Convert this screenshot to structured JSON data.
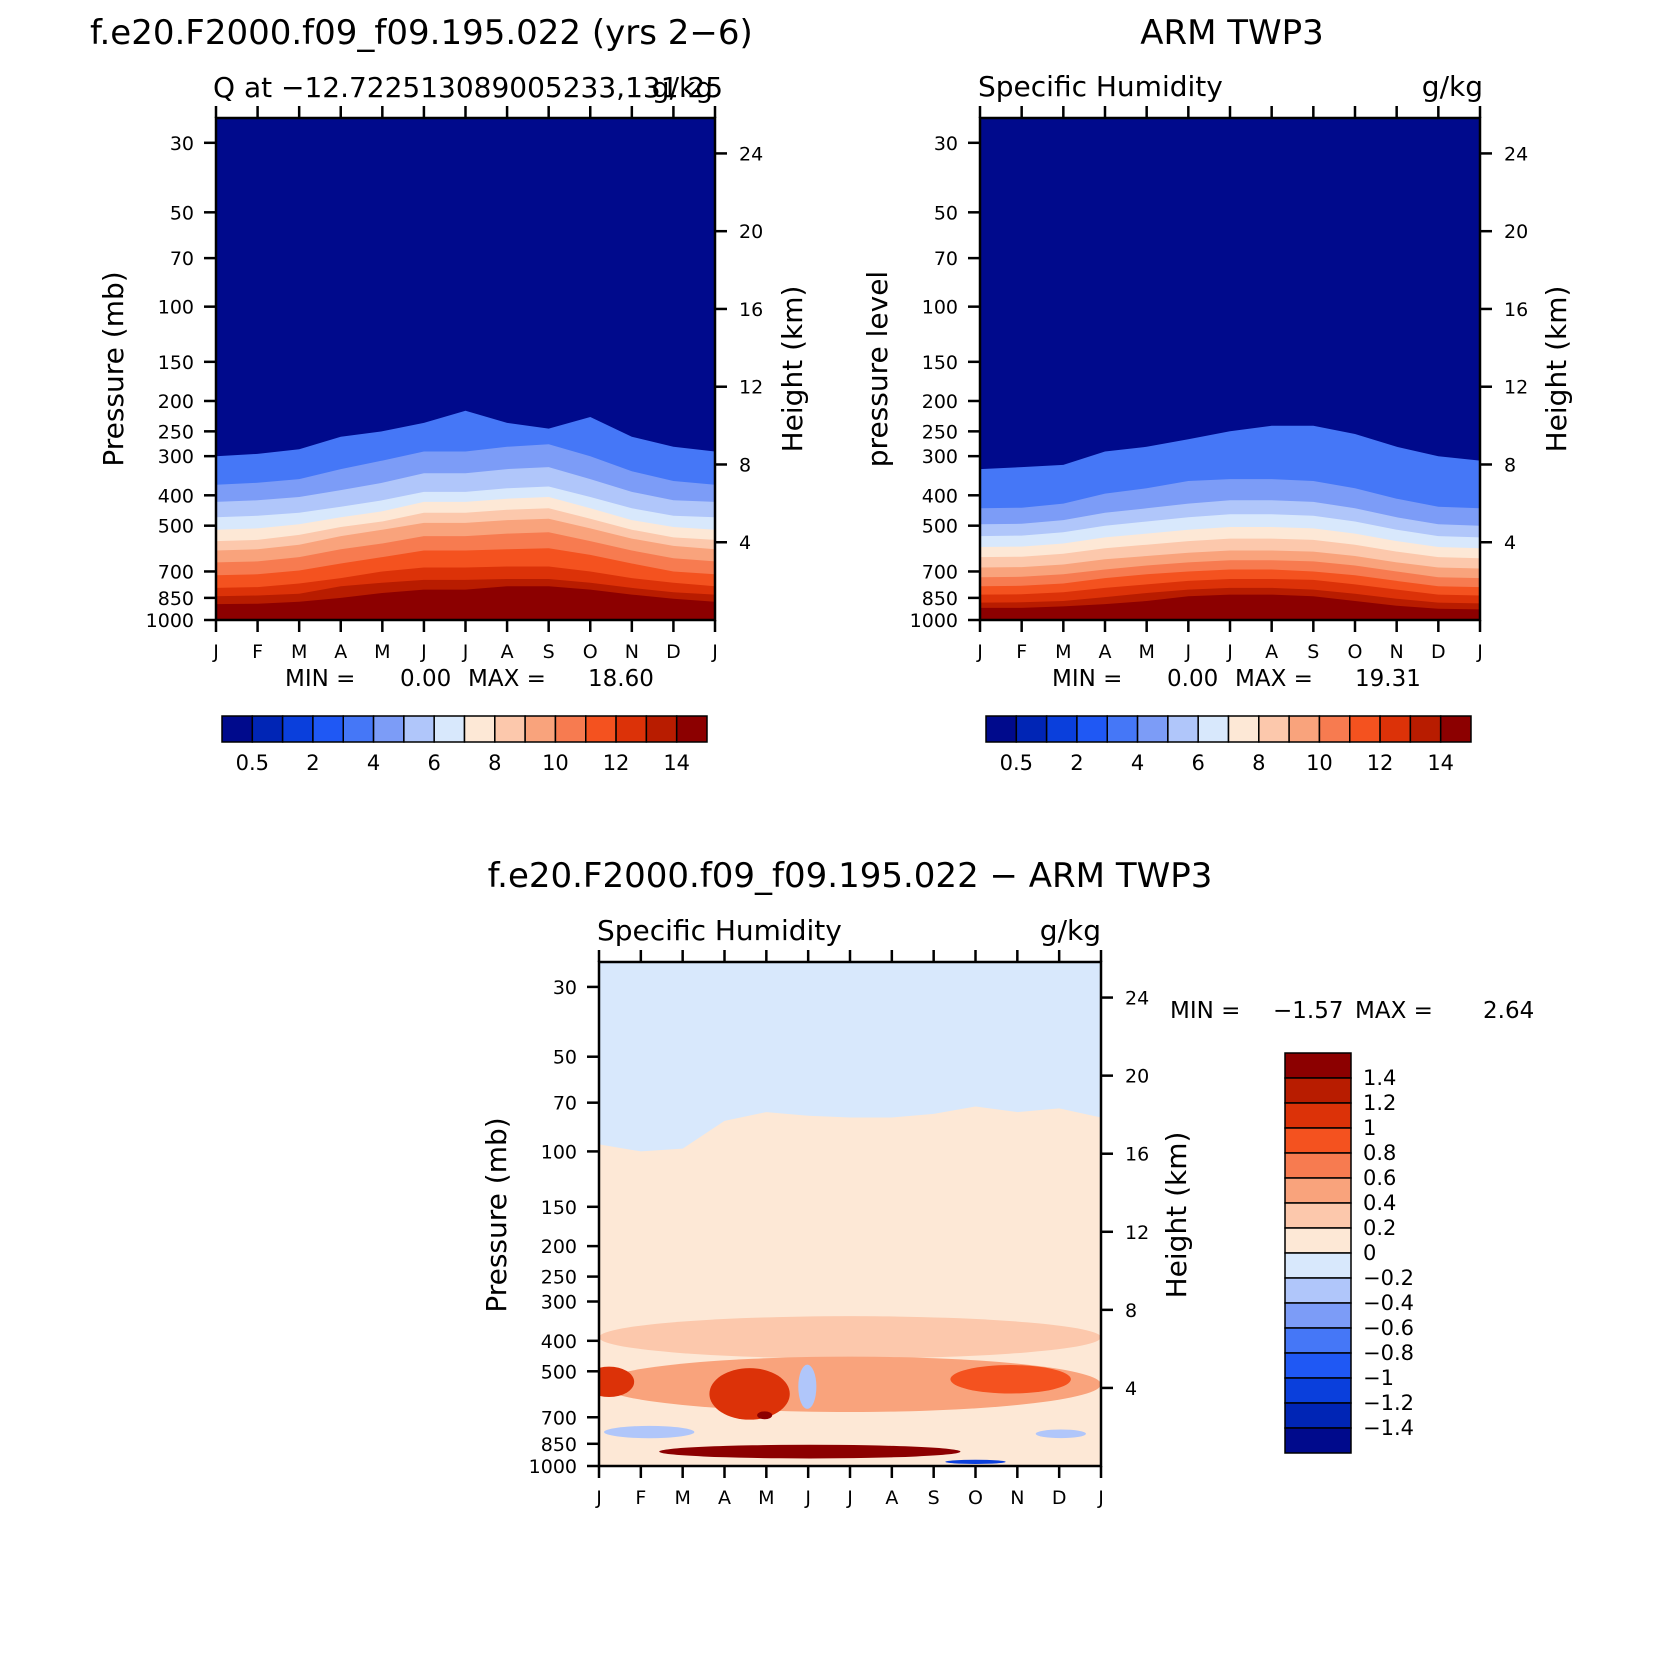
{
  "colors": {
    "seq_palette": [
      "#000a8c",
      "#0025b5",
      "#0a3fdc",
      "#1f58f4",
      "#4577f7",
      "#7c9cf7",
      "#b0c6fa",
      "#d8e8fc",
      "#fde8d6",
      "#fcc8ac",
      "#f9a37c",
      "#f77b50",
      "#f4521f",
      "#dc3208",
      "#b81c00",
      "#8c0000"
    ],
    "diff_palette": [
      "#8c0000",
      "#b81c00",
      "#dc3208",
      "#f4521f",
      "#f77b50",
      "#f9a37c",
      "#fcc8ac",
      "#fde8d6",
      "#d8e8fc",
      "#b0c6fa",
      "#7c9cf7",
      "#4577f7",
      "#1f58f4",
      "#0a3fdc",
      "#0025b5",
      "#000a8c"
    ]
  },
  "chart_data": [
    {
      "type": "heatmap",
      "title": "f.e20.F2000.f09_f09.195.022 (yrs 2−6)",
      "subtitle_left": "Q at −12.722513089005233,131.25",
      "subtitle_right": "g/kg",
      "ylabel": "Pressure (mb)",
      "ylabel_right": "Height (km)",
      "x_ticks": [
        "J",
        "F",
        "M",
        "A",
        "M",
        "J",
        "J",
        "A",
        "S",
        "O",
        "N",
        "D",
        "J"
      ],
      "y_ticks": [
        "30",
        "50",
        "70",
        "100",
        "150",
        "200",
        "250",
        "300",
        "400",
        "500",
        "700",
        "850",
        "1000"
      ],
      "y_ticks_right": [
        "24",
        "20",
        "16",
        "12",
        "8",
        "4"
      ],
      "y_range_mb": [
        25,
        1000
      ],
      "min_max_text": {
        "min_label": "MIN =",
        "min_value": "0.00",
        "max_label": "MAX =",
        "max_value": "18.60"
      },
      "colorbar_labels": [
        "0.5",
        "2",
        "4",
        "6",
        "8",
        "10",
        "12",
        "14"
      ],
      "contour_levels_mb": [
        [
          890,
          887,
          875,
          850,
          820,
          800,
          800,
          780,
          780,
          800,
          830,
          855,
          875
        ],
        [
          840,
          835,
          825,
          780,
          760,
          745,
          745,
          740,
          740,
          760,
          790,
          815,
          830
        ],
        [
          790,
          785,
          765,
          735,
          700,
          680,
          680,
          675,
          675,
          700,
          735,
          760,
          780
        ],
        [
          720,
          715,
          695,
          660,
          630,
          600,
          600,
          595,
          590,
          620,
          660,
          700,
          715
        ],
        [
          655,
          650,
          630,
          595,
          570,
          540,
          540,
          530,
          525,
          560,
          600,
          635,
          650
        ],
        [
          600,
          595,
          575,
          540,
          515,
          490,
          490,
          480,
          475,
          510,
          550,
          580,
          595
        ],
        [
          560,
          555,
          535,
          505,
          485,
          455,
          455,
          445,
          440,
          475,
          515,
          545,
          555
        ],
        [
          515,
          510,
          495,
          470,
          450,
          420,
          420,
          410,
          405,
          440,
          480,
          505,
          515
        ],
        [
          470,
          465,
          455,
          435,
          415,
          390,
          390,
          380,
          375,
          405,
          440,
          465,
          470
        ],
        [
          420,
          415,
          405,
          385,
          365,
          340,
          340,
          330,
          325,
          355,
          390,
          415,
          420
        ],
        [
          370,
          365,
          355,
          330,
          310,
          290,
          290,
          280,
          275,
          300,
          335,
          360,
          370
        ],
        [
          300,
          295,
          285,
          260,
          250,
          235,
          215,
          235,
          245,
          225,
          260,
          280,
          290
        ]
      ]
    },
    {
      "type": "heatmap",
      "title": "ARM TWP3",
      "subtitle_left": "Specific Humidity",
      "subtitle_right": "g/kg",
      "ylabel": "pressure level",
      "ylabel_right": "Height (km)",
      "x_ticks": [
        "J",
        "F",
        "M",
        "A",
        "M",
        "J",
        "J",
        "A",
        "S",
        "O",
        "N",
        "D",
        "J"
      ],
      "y_ticks": [
        "30",
        "50",
        "70",
        "100",
        "150",
        "200",
        "250",
        "300",
        "400",
        "500",
        "700",
        "850",
        "1000"
      ],
      "y_ticks_right": [
        "24",
        "20",
        "16",
        "12",
        "8",
        "4"
      ],
      "y_range_mb": [
        25,
        1000
      ],
      "min_max_text": {
        "min_label": "MIN =",
        "min_value": "0.00",
        "max_label": "MAX =",
        "max_value": "19.31"
      },
      "colorbar_labels": [
        "0.5",
        "2",
        "4",
        "6",
        "8",
        "10",
        "12",
        "14"
      ],
      "contour_levels_mb": [
        [
          915,
          915,
          905,
          890,
          870,
          840,
          830,
          830,
          840,
          870,
          900,
          920,
          925
        ],
        [
          880,
          878,
          870,
          845,
          820,
          800,
          790,
          790,
          800,
          825,
          855,
          880,
          885
        ],
        [
          830,
          828,
          815,
          790,
          770,
          750,
          740,
          740,
          745,
          770,
          800,
          830,
          835
        ],
        [
          780,
          778,
          765,
          735,
          715,
          700,
          690,
          690,
          700,
          720,
          750,
          780,
          785
        ],
        [
          730,
          728,
          715,
          690,
          670,
          655,
          645,
          645,
          650,
          670,
          700,
          730,
          735
        ],
        [
          680,
          678,
          665,
          640,
          625,
          610,
          600,
          600,
          605,
          625,
          655,
          680,
          685
        ],
        [
          630,
          628,
          615,
          590,
          575,
          560,
          550,
          550,
          555,
          575,
          605,
          630,
          635
        ],
        [
          585,
          583,
          570,
          545,
          530,
          515,
          505,
          505,
          510,
          530,
          560,
          585,
          590
        ],
        [
          540,
          538,
          525,
          500,
          485,
          470,
          460,
          460,
          465,
          485,
          515,
          540,
          545
        ],
        [
          495,
          493,
          480,
          455,
          440,
          425,
          415,
          415,
          420,
          440,
          470,
          495,
          500
        ],
        [
          440,
          438,
          425,
          395,
          380,
          360,
          355,
          355,
          360,
          380,
          410,
          435,
          440
        ],
        [
          330,
          325,
          320,
          290,
          280,
          265,
          250,
          240,
          240,
          255,
          280,
          300,
          310
        ]
      ]
    },
    {
      "type": "heatmap",
      "title": "f.e20.F2000.f09_f09.195.022 − ARM TWP3",
      "subtitle_left": "Specific Humidity",
      "subtitle_right": "g/kg",
      "ylabel": "Pressure (mb)",
      "ylabel_right": "Height (km)",
      "x_ticks": [
        "J",
        "F",
        "M",
        "A",
        "M",
        "J",
        "J",
        "A",
        "S",
        "O",
        "N",
        "D",
        "J"
      ],
      "y_ticks": [
        "30",
        "50",
        "70",
        "100",
        "150",
        "200",
        "250",
        "300",
        "400",
        "500",
        "700",
        "850",
        "1000"
      ],
      "y_ticks_right": [
        "24",
        "20",
        "16",
        "12",
        "8",
        "4"
      ],
      "y_range_mb": [
        25,
        1000
      ],
      "min_max_text": {
        "min_label": "MIN =",
        "min_value": "−1.57",
        "max_label": "MAX =",
        "max_value": "2.64"
      },
      "colorbar_labels": [
        "1.4",
        "1.2",
        "1",
        "0.8",
        "0.6",
        "0.4",
        "0.2",
        "0",
        "−0.2",
        "−0.4",
        "−0.6",
        "−0.8",
        "−1",
        "−1.2",
        "−1.4"
      ],
      "zero_line_mb": [
        95,
        100,
        98,
        80,
        75,
        77,
        78,
        78,
        76,
        72,
        75,
        73,
        78
      ],
      "blobs": [
        {
          "name": "upper-red",
          "color": "#fcc8ac",
          "x": 0.5,
          "p": 390,
          "rx": 0.5,
          "rp": 60
        },
        {
          "name": "mid-red",
          "color": "#f9a37c",
          "x": 0.5,
          "p": 550,
          "rx": 0.5,
          "rp": 110
        },
        {
          "name": "left-core",
          "color": "#dc3208",
          "x": 0.02,
          "p": 540,
          "rx": 0.05,
          "rp": 60
        },
        {
          "name": "apr-core",
          "color": "#dc3208",
          "x": 0.3,
          "p": 590,
          "rx": 0.08,
          "rp": 110
        },
        {
          "name": "may-core",
          "color": "#8c0000",
          "x": 0.33,
          "p": 690,
          "rx": 0.015,
          "rp": 20
        },
        {
          "name": "oct-core",
          "color": "#f4521f",
          "x": 0.82,
          "p": 530,
          "rx": 0.12,
          "rp": 55
        },
        {
          "name": "jun-blue",
          "color": "#b0c6fa",
          "x": 0.415,
          "p": 560,
          "rx": 0.018,
          "rp": 90
        },
        {
          "name": "feb-blue",
          "color": "#b0c6fa",
          "x": 0.1,
          "p": 780,
          "rx": 0.09,
          "rp": 35
        },
        {
          "name": "low-dark",
          "color": "#8c0000",
          "x": 0.42,
          "p": 900,
          "rx": 0.3,
          "rp": 45
        },
        {
          "name": "low-blue",
          "color": "#0a3fdc",
          "x": 0.75,
          "p": 970,
          "rx": 0.06,
          "rp": 15
        },
        {
          "name": "nov-blue",
          "color": "#b0c6fa",
          "x": 0.92,
          "p": 790,
          "rx": 0.05,
          "rp": 25
        }
      ]
    }
  ]
}
